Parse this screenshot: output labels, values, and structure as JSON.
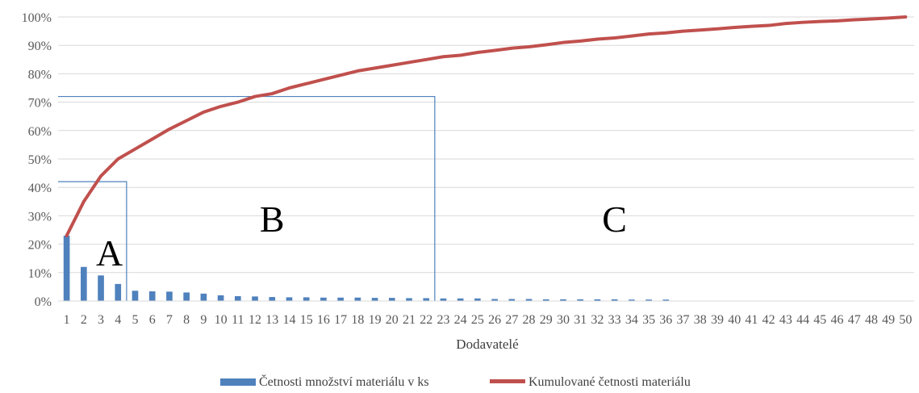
{
  "chart_data": {
    "type": "bar",
    "categories": [
      "1",
      "2",
      "3",
      "4",
      "5",
      "6",
      "7",
      "8",
      "9",
      "10",
      "11",
      "12",
      "13",
      "14",
      "15",
      "16",
      "17",
      "18",
      "19",
      "20",
      "21",
      "22",
      "23",
      "24",
      "25",
      "26",
      "27",
      "28",
      "29",
      "30",
      "31",
      "32",
      "33",
      "34",
      "35",
      "36",
      "37",
      "38",
      "39",
      "40",
      "41",
      "42",
      "43",
      "44",
      "45",
      "46",
      "47",
      "48",
      "49",
      "50"
    ],
    "xlabel": "Dodavatelé",
    "ylim": [
      0,
      1
    ],
    "yticks": [
      "0%",
      "10%",
      "20%",
      "30%",
      "40%",
      "50%",
      "60%",
      "70%",
      "80%",
      "90%",
      "100%"
    ],
    "grid": true,
    "legend_position": "bottom",
    "series": [
      {
        "name": "Četnosti množství materiálu v ks",
        "type": "bar",
        "color": "#4f81bd",
        "values": [
          0.23,
          0.12,
          0.09,
          0.06,
          0.036,
          0.034,
          0.033,
          0.03,
          0.026,
          0.02,
          0.017,
          0.016,
          0.014,
          0.013,
          0.013,
          0.012,
          0.012,
          0.012,
          0.011,
          0.011,
          0.01,
          0.01,
          0.009,
          0.009,
          0.009,
          0.007,
          0.007,
          0.007,
          0.006,
          0.006,
          0.006,
          0.006,
          0.006,
          0.005,
          0.005,
          0.005,
          0,
          0,
          0,
          0,
          0,
          0,
          0,
          0,
          0,
          0,
          0,
          0,
          0,
          0
        ]
      },
      {
        "name": "Kumulované četnosti materiálu",
        "type": "line",
        "color": "#c0504d",
        "values": [
          0.23,
          0.35,
          0.44,
          0.5,
          0.535,
          0.57,
          0.605,
          0.635,
          0.665,
          0.685,
          0.7,
          0.72,
          0.73,
          0.75,
          0.765,
          0.78,
          0.795,
          0.81,
          0.82,
          0.83,
          0.84,
          0.85,
          0.86,
          0.865,
          0.875,
          0.882,
          0.89,
          0.895,
          0.902,
          0.91,
          0.915,
          0.922,
          0.926,
          0.933,
          0.94,
          0.944,
          0.95,
          0.954,
          0.958,
          0.963,
          0.967,
          0.97,
          0.977,
          0.981,
          0.984,
          0.986,
          0.99,
          0.993,
          0.996,
          1.0
        ]
      }
    ],
    "annotations": {
      "boundary_color": "#4f81bd",
      "boundaries": [
        {
          "category": "4",
          "value": 0.42
        },
        {
          "category": "22",
          "value": 0.72
        }
      ],
      "regions": [
        {
          "text": "A",
          "category": "3",
          "value": 0.17
        },
        {
          "text": "B",
          "category": "12.5",
          "value": 0.29
        },
        {
          "text": "C",
          "category": "32.5",
          "value": 0.29
        }
      ]
    }
  }
}
